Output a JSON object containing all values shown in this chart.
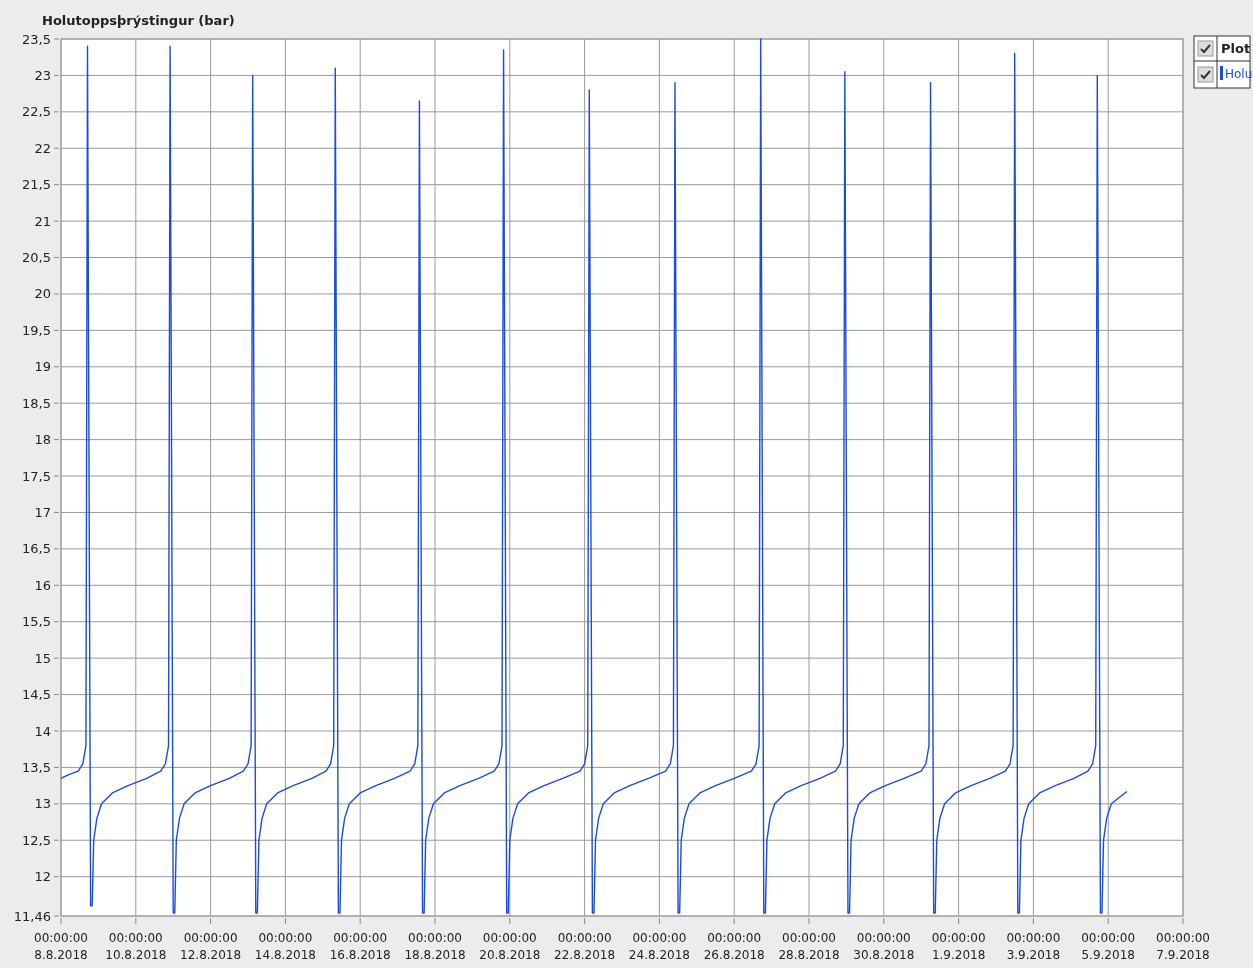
{
  "chart_data": {
    "type": "line",
    "title": "Holutoppsþrýstingur (bar)",
    "legend_title": "Plot",
    "legend": "top right",
    "grid": true,
    "marker": "none",
    "line_style": "solid",
    "xlim": [
      "2018-08-08",
      "2018-09-07"
    ],
    "xticks": [
      {
        "value": "2018-08-08",
        "label": "00:00:00\n8.8.2018"
      },
      {
        "value": "2018-08-10",
        "label": "00:00:00\n10.8.2018"
      },
      {
        "value": "2018-08-12",
        "label": "00:00:00\n12.8.2018"
      },
      {
        "value": "2018-08-14",
        "label": "00:00:00\n14.8.2018"
      },
      {
        "value": "2018-08-16",
        "label": "00:00:00\n16.8.2018"
      },
      {
        "value": "2018-08-18",
        "label": "00:00:00\n18.8.2018"
      },
      {
        "value": "2018-08-20",
        "label": "00:00:00\n20.8.2018"
      },
      {
        "value": "2018-08-22",
        "label": "00:00:00\n22.8.2018"
      },
      {
        "value": "2018-08-24",
        "label": "00:00:00\n24.8.2018"
      },
      {
        "value": "2018-08-26",
        "label": "00:00:00\n26.8.2018"
      },
      {
        "value": "2018-08-28",
        "label": "00:00:00\n28.8.2018"
      },
      {
        "value": "2018-08-30",
        "label": "00:00:00\n30.8.2018"
      },
      {
        "value": "2018-09-01",
        "label": "00:00:00\n1.9.2018"
      },
      {
        "value": "2018-09-03",
        "label": "00:00:00\n3.9.2018"
      },
      {
        "value": "2018-09-05",
        "label": "00:00:00\n5.9.2018"
      },
      {
        "value": "2018-09-07",
        "label": "00:00:00\n7.9.2018"
      }
    ],
    "ylim": [
      11.46,
      23.5
    ],
    "yticks": [
      {
        "value": 11.46,
        "label": "11,46"
      },
      12,
      {
        "value": 12.5,
        "label": "12,5"
      },
      13,
      {
        "value": 13.5,
        "label": "13,5"
      },
      14,
      {
        "value": 14.5,
        "label": "14,5"
      },
      15,
      {
        "value": 15.5,
        "label": "15,5"
      },
      16,
      {
        "value": 16.5,
        "label": "16,5"
      },
      17,
      {
        "value": 17.5,
        "label": "17,5"
      },
      18,
      {
        "value": 18.5,
        "label": "18,5"
      },
      19,
      {
        "value": 19.5,
        "label": "19,5"
      },
      20,
      {
        "value": 20.5,
        "label": "20,5"
      },
      21,
      {
        "value": 21.5,
        "label": "21,5"
      },
      22,
      {
        "value": 22.5,
        "label": "22,5"
      },
      23,
      {
        "value": 23.5,
        "label": "23,5"
      }
    ],
    "x": [
      "2018-08-08T00:00",
      "2018-08-08T05:00",
      "2018-08-08T11:00",
      "2018-08-08T14:00",
      "2018-08-08T16:00",
      "2018-08-08T17:00",
      "2018-08-08T19:00",
      "2018-08-08T20:00",
      "2018-08-08T21:00",
      "2018-08-08T23:00",
      "2018-08-09T02:00",
      "2018-08-09T09:00",
      "2018-08-09T19:00",
      "2018-08-10T07:00",
      "2018-08-10T16:00",
      "2018-08-10T19:00",
      "2018-08-10T21:00",
      "2018-08-10T22:00",
      "2018-08-11T00:00",
      "2018-08-11T01:00",
      "2018-08-11T02:00",
      "2018-08-11T04:00",
      "2018-08-11T07:00",
      "2018-08-11T14:00",
      "2018-08-12T00:00",
      "2018-08-12T12:00",
      "2018-08-12T21:00",
      "2018-08-13T00:00",
      "2018-08-13T02:00",
      "2018-08-13T03:00",
      "2018-08-13T05:00",
      "2018-08-13T06:00",
      "2018-08-13T07:00",
      "2018-08-13T09:00",
      "2018-08-13T12:00",
      "2018-08-13T19:00",
      "2018-08-14T05:00",
      "2018-08-14T17:00",
      "2018-08-15T02:00",
      "2018-08-15T05:00",
      "2018-08-15T07:00",
      "2018-08-15T08:00",
      "2018-08-15T10:00",
      "2018-08-15T11:00",
      "2018-08-15T12:00",
      "2018-08-15T14:00",
      "2018-08-15T17:00",
      "2018-08-16T00:00",
      "2018-08-16T10:00",
      "2018-08-16T22:00",
      "2018-08-17T08:00",
      "2018-08-17T11:00",
      "2018-08-17T13:00",
      "2018-08-17T14:00",
      "2018-08-17T16:00",
      "2018-08-17T17:00",
      "2018-08-17T18:00",
      "2018-08-17T20:00",
      "2018-08-17T23:00",
      "2018-08-18T06:00",
      "2018-08-18T16:00",
      "2018-08-19T04:00",
      "2018-08-19T14:00",
      "2018-08-19T17:00",
      "2018-08-19T19:00",
      "2018-08-19T20:00",
      "2018-08-19T22:00",
      "2018-08-19T23:00",
      "2018-08-20T00:00",
      "2018-08-20T02:00",
      "2018-08-20T05:00",
      "2018-08-20T12:00",
      "2018-08-20T22:00",
      "2018-08-21T10:00",
      "2018-08-21T21:00",
      "2018-08-22T00:00",
      "2018-08-22T02:00",
      "2018-08-22T03:00",
      "2018-08-22T05:00",
      "2018-08-22T06:00",
      "2018-08-22T07:00",
      "2018-08-22T09:00",
      "2018-08-22T12:00",
      "2018-08-22T19:00",
      "2018-08-23T05:00",
      "2018-08-23T17:00",
      "2018-08-24T04:00",
      "2018-08-24T07:00",
      "2018-08-24T09:00",
      "2018-08-24T10:00",
      "2018-08-24T12:00",
      "2018-08-24T13:00",
      "2018-08-24T14:00",
      "2018-08-24T16:00",
      "2018-08-24T19:00",
      "2018-08-25T02:00",
      "2018-08-25T12:00",
      "2018-08-26T00:00",
      "2018-08-26T11:00",
      "2018-08-26T14:00",
      "2018-08-26T16:00",
      "2018-08-26T17:00",
      "2018-08-26T19:00",
      "2018-08-26T20:00",
      "2018-08-26T21:00",
      "2018-08-26T23:00",
      "2018-08-27T02:00",
      "2018-08-27T09:00",
      "2018-08-27T19:00",
      "2018-08-28T07:00",
      "2018-08-28T17:00",
      "2018-08-28T20:00",
      "2018-08-28T22:00",
      "2018-08-28T23:00",
      "2018-08-29T01:00",
      "2018-08-29T02:00",
      "2018-08-29T03:00",
      "2018-08-29T05:00",
      "2018-08-29T08:00",
      "2018-08-29T15:00",
      "2018-08-30T01:00",
      "2018-08-30T13:00",
      "2018-08-31T00:00",
      "2018-08-31T03:00",
      "2018-08-31T05:00",
      "2018-08-31T06:00",
      "2018-08-31T08:00",
      "2018-08-31T09:00",
      "2018-08-31T10:00",
      "2018-08-31T12:00",
      "2018-08-31T15:00",
      "2018-08-31T22:00",
      "2018-09-01T08:00",
      "2018-09-01T20:00",
      "2018-09-02T06:00",
      "2018-09-02T09:00",
      "2018-09-02T11:00",
      "2018-09-02T12:00",
      "2018-09-02T14:00",
      "2018-09-02T15:00",
      "2018-09-02T16:00",
      "2018-09-02T18:00",
      "2018-09-02T21:00",
      "2018-09-03T04:00",
      "2018-09-03T14:00",
      "2018-09-04T02:00",
      "2018-09-04T11:00",
      "2018-09-04T14:00",
      "2018-09-04T16:00",
      "2018-09-04T17:00",
      "2018-09-04T19:00",
      "2018-09-04T20:00",
      "2018-09-04T21:00",
      "2018-09-04T23:00",
      "2018-09-05T02:00",
      "2018-09-05T12:00"
    ],
    "series": [
      {
        "name": "Holu",
        "color": "#1a4be6",
        "values": [
          13.35,
          13.4,
          13.45,
          13.55,
          13.8,
          23.4,
          11.6,
          11.6,
          12.5,
          12.8,
          13.0,
          13.15,
          13.25,
          13.35,
          13.45,
          13.55,
          13.8,
          23.4,
          11.5,
          11.5,
          12.5,
          12.8,
          13.0,
          13.15,
          13.25,
          13.35,
          13.45,
          13.55,
          13.8,
          23.0,
          11.5,
          11.5,
          12.5,
          12.8,
          13.0,
          13.15,
          13.25,
          13.35,
          13.45,
          13.55,
          13.8,
          23.1,
          11.5,
          11.5,
          12.5,
          12.8,
          13.0,
          13.15,
          13.25,
          13.35,
          13.45,
          13.55,
          13.8,
          22.65,
          11.5,
          11.5,
          12.5,
          12.8,
          13.0,
          13.15,
          13.25,
          13.35,
          13.45,
          13.55,
          13.8,
          23.35,
          11.5,
          11.5,
          12.5,
          12.8,
          13.0,
          13.15,
          13.25,
          13.35,
          13.45,
          13.55,
          13.8,
          22.8,
          11.5,
          11.5,
          12.5,
          12.8,
          13.0,
          13.15,
          13.25,
          13.35,
          13.45,
          13.55,
          13.8,
          22.9,
          11.5,
          11.5,
          12.5,
          12.8,
          13.0,
          13.15,
          13.25,
          13.35,
          13.45,
          13.55,
          13.8,
          23.5,
          11.5,
          11.5,
          12.5,
          12.8,
          13.0,
          13.15,
          13.25,
          13.35,
          13.45,
          13.55,
          13.8,
          23.05,
          11.5,
          11.5,
          12.5,
          12.8,
          13.0,
          13.15,
          13.25,
          13.35,
          13.45,
          13.55,
          13.8,
          22.9,
          11.5,
          11.5,
          12.5,
          12.8,
          13.0,
          13.15,
          13.25,
          13.35,
          13.45,
          13.55,
          13.8,
          23.3,
          11.5,
          11.5,
          12.5,
          12.8,
          13.0,
          13.15,
          13.25,
          13.35,
          13.45,
          13.55,
          13.8,
          23.0,
          11.5,
          11.5,
          12.5,
          12.8,
          13.0,
          13.17
        ]
      }
    ]
  }
}
